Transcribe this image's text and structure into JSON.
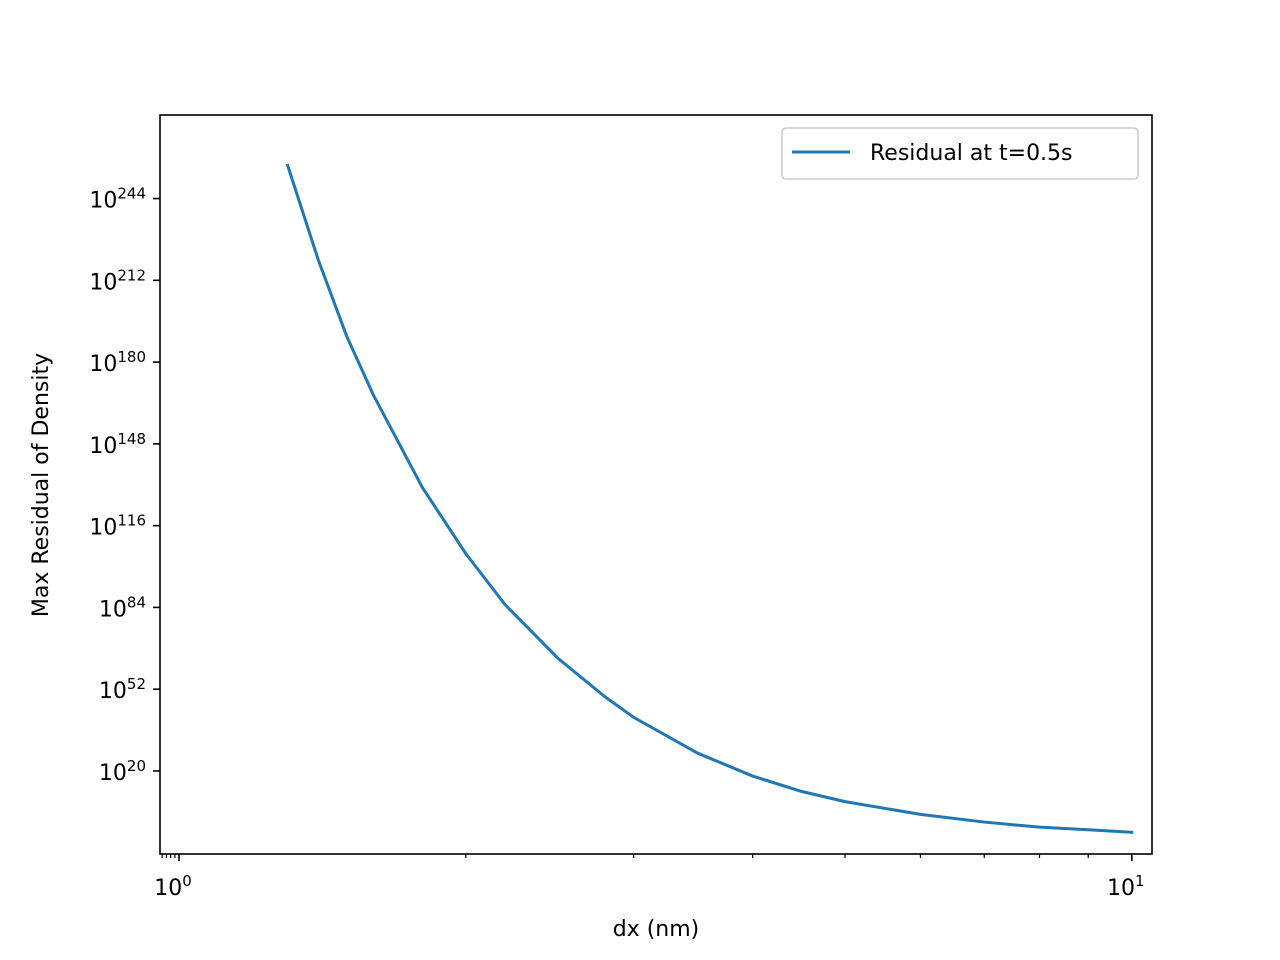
{
  "chart_data": {
    "type": "line",
    "title": "",
    "xlabel": "dx (nm)",
    "ylabel": "Max Residual of Density",
    "xscale": "log",
    "yscale": "log",
    "xlim": [
      0.955,
      10.5
    ],
    "ylim_exponent": [
      -12.5,
      276.7
    ],
    "grid": false,
    "legend_position": "top-right",
    "x_ticks": [
      {
        "value": 1,
        "base": "10",
        "exp": "0"
      },
      {
        "value": 10,
        "base": "10",
        "exp": "1"
      }
    ],
    "y_ticks": [
      {
        "exponent": 20,
        "base": "10",
        "exp": "20"
      },
      {
        "exponent": 52,
        "base": "10",
        "exp": "52"
      },
      {
        "exponent": 84,
        "base": "10",
        "exp": "84"
      },
      {
        "exponent": 116,
        "base": "10",
        "exp": "116"
      },
      {
        "exponent": 148,
        "base": "10",
        "exp": "148"
      },
      {
        "exponent": 180,
        "base": "10",
        "exp": "180"
      },
      {
        "exponent": 212,
        "base": "10",
        "exp": "212"
      },
      {
        "exponent": 244,
        "base": "10",
        "exp": "244"
      }
    ],
    "series": [
      {
        "name": "Residual at t=0.5s",
        "color": "#1f77b4",
        "x": [
          1.3,
          1.4,
          1.5,
          1.6,
          1.8,
          2.0,
          2.2,
          2.5,
          2.8,
          3.0,
          3.5,
          4.0,
          4.5,
          5.0,
          6.0,
          7.0,
          8.0,
          9.0,
          10.0
        ],
        "y_exponent": [
          257,
          220,
          190,
          167,
          131,
          105,
          85,
          64,
          49,
          41,
          27,
          18,
          12,
          8,
          3,
          0,
          -2,
          -3,
          -4
        ]
      }
    ]
  },
  "legend": {
    "label": "Residual at t=0.5s"
  }
}
